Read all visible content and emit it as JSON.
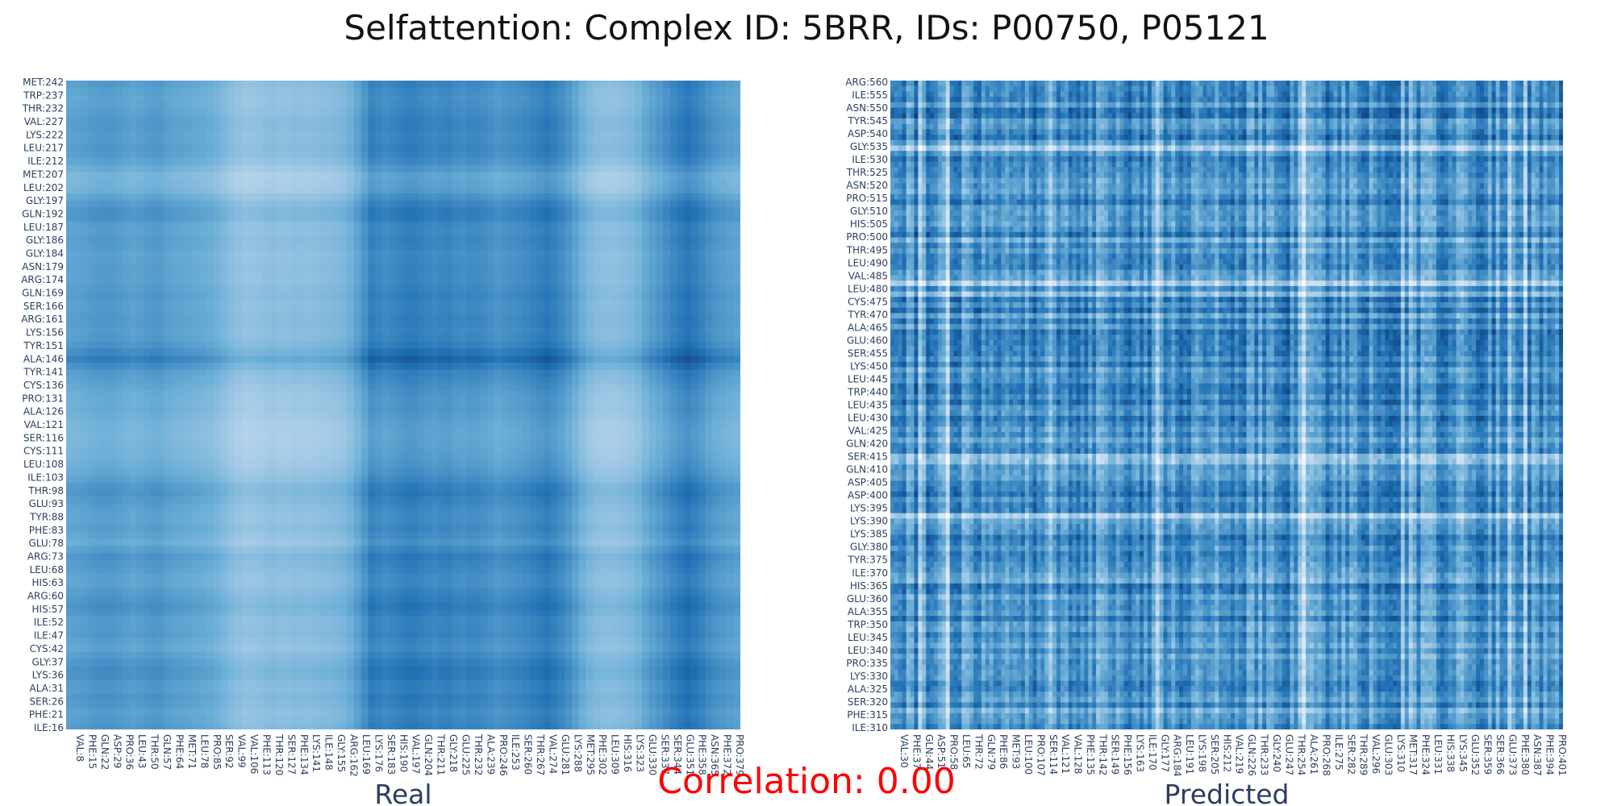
{
  "title": "Selfattention: Complex ID: 5BRR, IDs: P00750, P05121",
  "correlation_text": "Correlation: 0.00",
  "chart_data": [
    {
      "type": "heatmap",
      "name": "Real",
      "colorscale": [
        "#f7fbff",
        "#c6dbef",
        "#6baed6",
        "#2171b5",
        "#08306b"
      ],
      "x_ticks": [
        "VAL:8",
        "PHE:15",
        "GLN:22",
        "ASP:29",
        "PRO:36",
        "LEU:43",
        "THR:50",
        "GLN:57",
        "PHE:64",
        "MET:71",
        "LEU:78",
        "PRO:85",
        "SER:92",
        "VAL:99",
        "VAL:106",
        "PHE:113",
        "THR:120",
        "SER:127",
        "PHE:134",
        "LYS:141",
        "ILE:148",
        "GLY:155",
        "ARG:162",
        "LEU:169",
        "LYS:176",
        "SER:183",
        "HIS:190",
        "VAL:197",
        "GLN:204",
        "THR:211",
        "GLY:218",
        "GLU:225",
        "THR:232",
        "ALA:239",
        "PRO:246",
        "ILE:253",
        "SER:260",
        "THR:267",
        "VAL:274",
        "GLU:281",
        "LYS:288",
        "MET:295",
        "PHE:302",
        "LEU:309",
        "HIS:316",
        "LYS:323",
        "GLU:330",
        "SER:337",
        "SER:344",
        "GLU:351",
        "PHE:358",
        "ASN:365",
        "PHE:372",
        "PRO:379"
      ],
      "y_ticks": [
        "ILE:16",
        "PHE:21",
        "SER:26",
        "ALA:31",
        "LYS:36",
        "GLY:37",
        "CYS:42",
        "ILE:47",
        "ILE:52",
        "HIS:57",
        "ARG:60",
        "HIS:63",
        "LEU:68",
        "ARG:73",
        "GLU:78",
        "PHE:83",
        "TYR:88",
        "GLU:93",
        "THR:98",
        "ILE:103",
        "LEU:108",
        "CYS:111",
        "SER:116",
        "VAL:121",
        "ALA:126",
        "PRO:131",
        "CYS:136",
        "TYR:141",
        "ALA:146",
        "TYR:151",
        "LYS:156",
        "ARG:161",
        "SER:166",
        "GLN:169",
        "ARG:174",
        "ASN:179",
        "GLY:184",
        "GLY:186",
        "LEU:187",
        "GLN:192",
        "GLY:197",
        "LEU:202",
        "MET:207",
        "ILE:212",
        "LEU:217",
        "LYS:222",
        "VAL:227",
        "THR:232",
        "TRP:237",
        "MET:242"
      ],
      "row_profile": [
        0.62,
        0.55,
        0.66,
        0.58,
        0.72,
        0.64,
        0.5,
        0.6,
        0.56,
        0.7,
        0.62,
        0.5,
        0.58,
        0.66,
        0.44,
        0.56,
        0.5,
        0.58,
        0.68,
        0.5,
        0.4,
        0.34,
        0.3,
        0.32,
        0.42,
        0.4,
        0.5,
        0.6,
        0.84,
        0.66,
        0.56,
        0.62,
        0.56,
        0.62,
        0.54,
        0.56,
        0.52,
        0.6,
        0.52,
        0.7,
        0.58,
        0.34,
        0.3,
        0.5,
        0.62,
        0.56,
        0.62,
        0.54,
        0.5,
        0.58
      ],
      "col_profile": [
        0.5,
        0.52,
        0.58,
        0.6,
        0.56,
        0.5,
        0.55,
        0.6,
        0.5,
        0.48,
        0.44,
        0.4,
        0.32,
        0.18,
        0.12,
        0.14,
        0.2,
        0.16,
        0.2,
        0.18,
        0.22,
        0.24,
        0.3,
        0.52,
        0.82,
        0.72,
        0.78,
        0.86,
        0.8,
        0.74,
        0.8,
        0.7,
        0.76,
        0.7,
        0.62,
        0.68,
        0.72,
        0.8,
        0.88,
        0.74,
        0.55,
        0.3,
        0.2,
        0.18,
        0.22,
        0.28,
        0.5,
        0.62,
        0.78,
        0.92,
        0.82,
        0.64,
        0.56,
        0.5
      ],
      "xlabel": "Real"
    },
    {
      "type": "heatmap",
      "name": "Predicted",
      "colorscale": [
        "#f7fbff",
        "#c6dbef",
        "#6baed6",
        "#2171b5",
        "#08306b"
      ],
      "x_ticks": [
        "VAL:30",
        "PHE:37",
        "GLN:44",
        "ASP:51",
        "PRO:58",
        "LEU:65",
        "THR:72",
        "GLN:79",
        "PHE:86",
        "MET:93",
        "LEU:100",
        "PRO:107",
        "SER:114",
        "VAL:121",
        "VAL:128",
        "PHE:135",
        "THR:142",
        "SER:149",
        "PHE:156",
        "LYS:163",
        "ILE:170",
        "GLY:177",
        "ARG:184",
        "LEU:191",
        "LYS:198",
        "SER:205",
        "HIS:212",
        "VAL:219",
        "GLN:226",
        "THR:233",
        "GLY:240",
        "GLU:247",
        "THR:254",
        "ALA:261",
        "PRO:268",
        "ILE:275",
        "SER:282",
        "THR:289",
        "VAL:296",
        "GLU:303",
        "LYS:310",
        "MET:317",
        "PHE:324",
        "LEU:331",
        "HIS:338",
        "LYS:345",
        "GLU:352",
        "SER:359",
        "SER:366",
        "GLU:373",
        "PHE:380",
        "ASN:387",
        "PHE:394",
        "PRO:401"
      ],
      "y_ticks": [
        "ILE:310",
        "PHE:315",
        "SER:320",
        "ALA:325",
        "LYS:330",
        "PRO:335",
        "LEU:340",
        "LEU:345",
        "TRP:350",
        "ALA:355",
        "GLU:360",
        "HIS:365",
        "ILE:370",
        "TYR:375",
        "GLY:380",
        "LYS:385",
        "LYS:390",
        "LYS:395",
        "ASP:400",
        "ASP:405",
        "GLN:410",
        "SER:415",
        "GLN:420",
        "VAL:425",
        "LEU:430",
        "LEU:435",
        "TRP:440",
        "LEU:445",
        "LYS:450",
        "SER:455",
        "GLU:460",
        "ALA:465",
        "TYR:470",
        "CYS:475",
        "LEU:480",
        "VAL:485",
        "LEU:490",
        "THR:495",
        "PRO:500",
        "HIS:505",
        "GLY:510",
        "PRO:515",
        "ASN:520",
        "THR:525",
        "ILE:530",
        "GLY:535",
        "ASP:540",
        "TYR:545",
        "ASN:550",
        "ILE:555",
        "ARG:560"
      ],
      "base_intensity": 0.62,
      "xlabel": "Predicted"
    }
  ]
}
